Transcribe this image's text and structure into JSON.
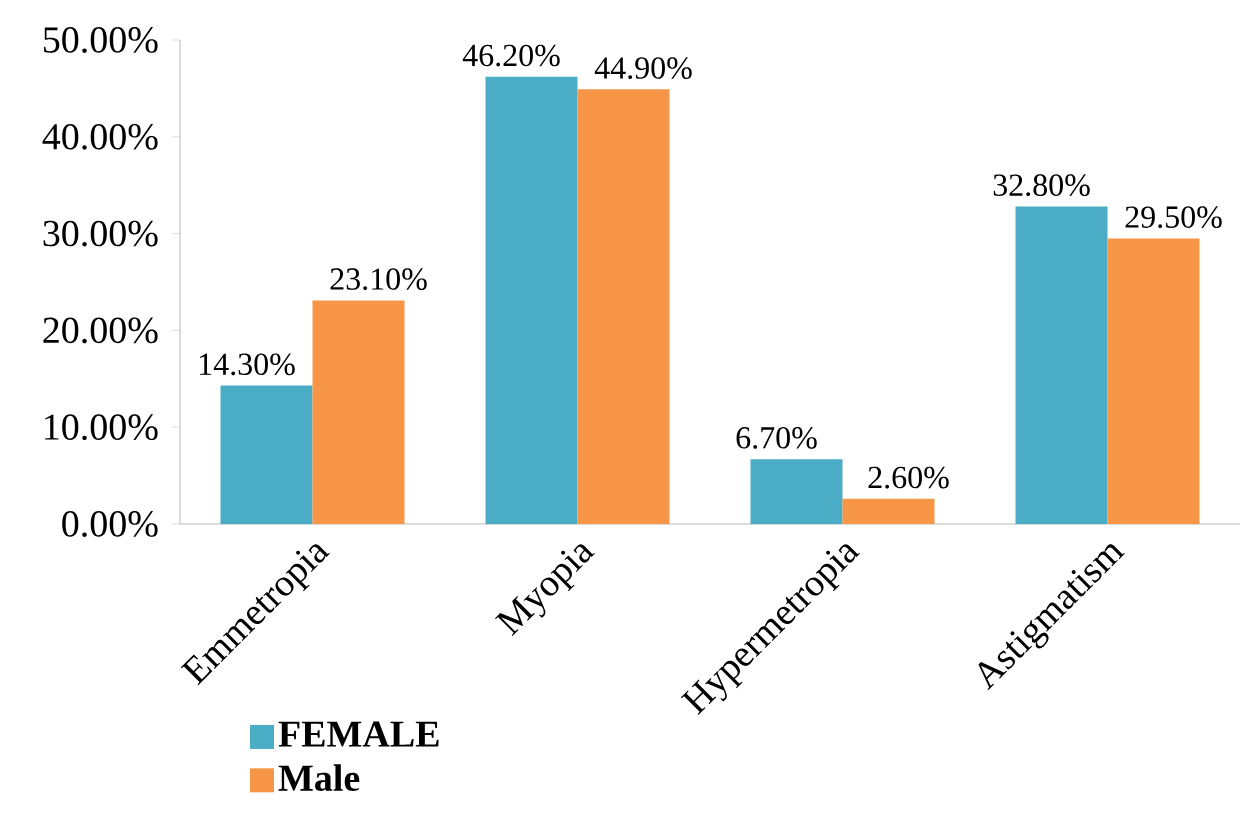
{
  "chart_data": {
    "type": "bar",
    "categories": [
      "Emmetropia",
      "Myopia",
      "Hypermetropia",
      "Astigmatism"
    ],
    "series": [
      {
        "name": "FEMALE",
        "color": "#4bacc6",
        "values": [
          14.3,
          46.2,
          6.7,
          32.8
        ],
        "value_labels": [
          "14.30%",
          "46.20%",
          "6.70%",
          "32.80%"
        ]
      },
      {
        "name": "Male",
        "color": "#f79646",
        "values": [
          23.1,
          44.9,
          2.6,
          29.5
        ],
        "value_labels": [
          "23.10%",
          "44.90%",
          "2.60%",
          "29.50%"
        ]
      }
    ],
    "ylim": [
      0,
      50
    ],
    "yticks": [
      {
        "value": 0,
        "label": "0.00%"
      },
      {
        "value": 10,
        "label": "10.00%"
      },
      {
        "value": 20,
        "label": "20.00%"
      },
      {
        "value": 30,
        "label": "30.00%"
      },
      {
        "value": 40,
        "label": "40.00%"
      },
      {
        "value": 50,
        "label": "50.00%"
      }
    ],
    "legend": "bottom left"
  }
}
